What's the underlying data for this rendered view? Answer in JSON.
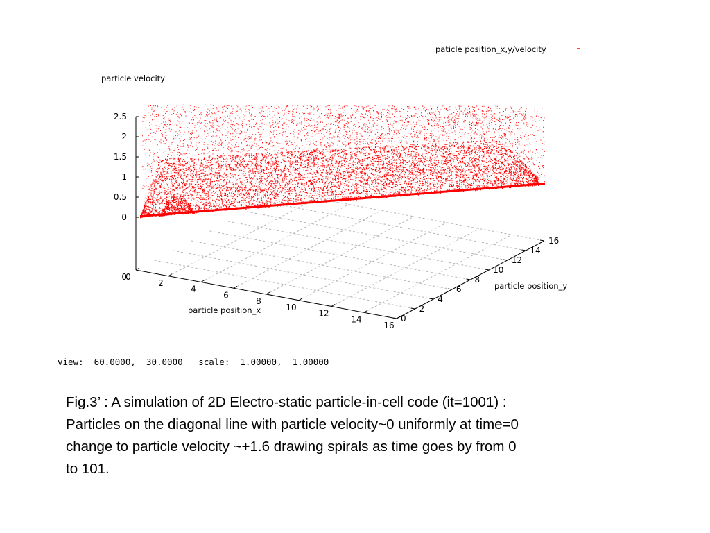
{
  "chart_data": {
    "type": "scatter",
    "title": "paticle position_x,y/velocity",
    "zlabel": "particle velocity",
    "xlabel": "particle position_x",
    "ylabel": "particle position_y",
    "x_ticks": [
      "0",
      "2",
      "4",
      "6",
      "8",
      "10",
      "12",
      "14",
      "16"
    ],
    "y_ticks": [
      "0",
      "2",
      "4",
      "6",
      "8",
      "10",
      "12",
      "14",
      "16"
    ],
    "z_ticks": [
      "0",
      "0.5",
      "1",
      "1.5",
      "2",
      "2.5"
    ],
    "xlim": [
      0,
      16
    ],
    "ylim": [
      0,
      16
    ],
    "zlim": [
      0,
      2.5
    ],
    "view_text": "view:  60.0000,  30.0000   scale:  1.00000,  1.00000",
    "series_color": "#ff0000",
    "grid": true
  },
  "caption": {
    "line1": "Fig.3’ : A simulation of 2D Electro-static particle-in-cell code (it=1001) :",
    "line2": "Particles on the diagonal line with particle velocity~0 uniformly at time=0",
    "line3": "change to particle velocity ~+1.6 drawing spirals as  time goes by from 0",
    "line4": "to 101."
  }
}
